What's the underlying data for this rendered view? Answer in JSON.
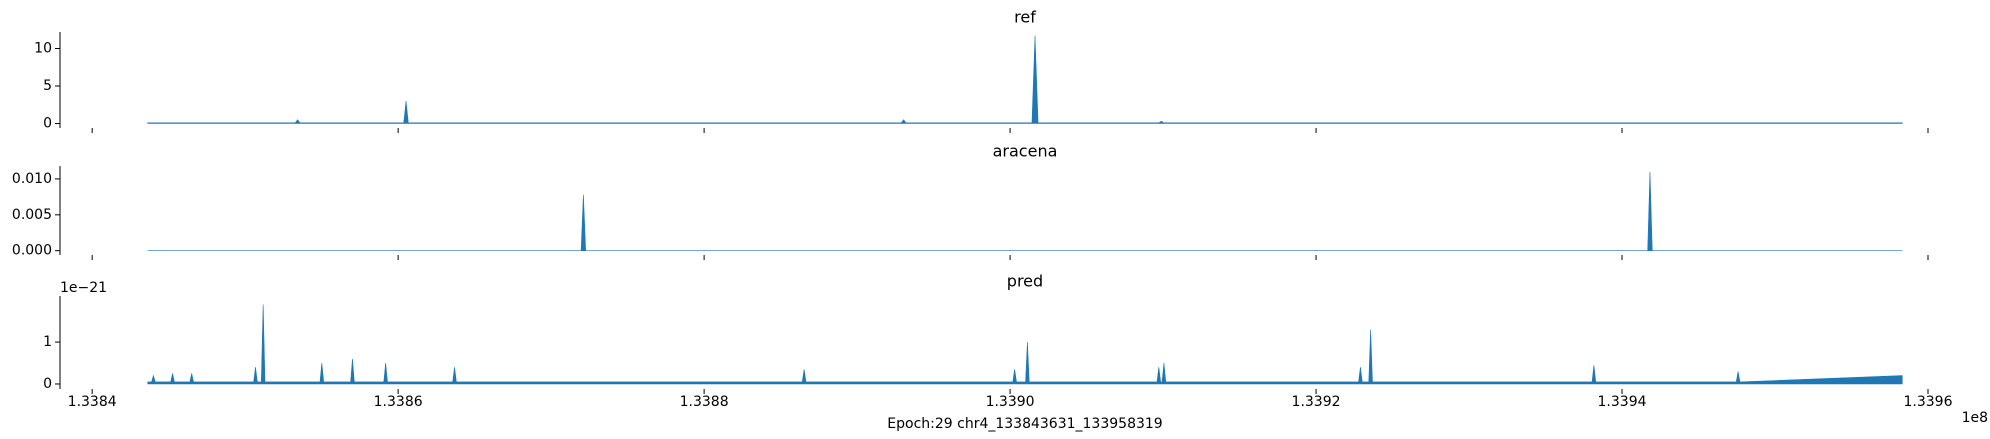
{
  "chart_data": [
    {
      "type": "area",
      "title": "ref",
      "color": "#1f77b4",
      "x": [
        133843631,
        133853277,
        133853427,
        133853577,
        133860366,
        133860516,
        133860666,
        133892890,
        133893040,
        133893190,
        133901430,
        133901630,
        133901830,
        133909736,
        133909886,
        133910036,
        133958319
      ],
      "values": [
        0.1,
        0.1,
        0.5,
        0.1,
        0.1,
        3.0,
        0.1,
        0.1,
        0.5,
        0.1,
        0.1,
        11.7,
        0.1,
        0.1,
        0.3,
        0.1,
        0.1
      ],
      "xlim": [
        133837897,
        133964053
      ],
      "ylim": [
        -0.6,
        12.2
      ],
      "yticks": [
        0,
        5,
        10
      ]
    },
    {
      "type": "area",
      "title": "aracena",
      "color": "#1f77b4",
      "x": [
        133843631,
        133871959,
        133872109,
        133872259,
        133941677,
        133941827,
        133941977,
        133958319
      ],
      "values": [
        0,
        0,
        0.0078,
        0,
        0,
        0.011,
        0,
        0
      ],
      "xlim": [
        133837897,
        133964053
      ],
      "ylim": [
        -0.0006,
        0.0118
      ],
      "yticks": [
        {
          "value": 0,
          "label": "0.000"
        },
        {
          "value": 0.005,
          "label": "0.005"
        },
        {
          "value": 0.01,
          "label": "0.010"
        }
      ]
    },
    {
      "type": "area",
      "title": "pred",
      "color": "#1f77b4",
      "x": [
        133843631,
        133843883,
        133844003,
        133844123,
        133845134,
        133845254,
        133845374,
        133846385,
        133846505,
        133846625,
        133850555,
        133850675,
        133850795,
        133851056,
        133851176,
        133851296,
        133854892,
        133855012,
        133855132,
        133856894,
        133857014,
        133857134,
        133859062,
        133859182,
        133859302,
        133863566,
        133863686,
        133863806,
        133886417,
        133886537,
        133886657,
        133900178,
        133900298,
        133900418,
        133901012,
        133901132,
        133901252,
        133909602,
        133909722,
        133909842,
        133909936,
        133910056,
        133910176,
        133922780,
        133922900,
        133923020,
        133923447,
        133923567,
        133923687,
        133938042,
        133938162,
        133938282,
        133947466,
        133947586,
        133947706,
        133958319
      ],
      "values": [
        5e-23,
        5e-23,
        2e-22,
        5e-23,
        5e-23,
        2.5e-22,
        5e-23,
        5e-23,
        2.5e-22,
        5e-23,
        5e-23,
        4e-22,
        5e-23,
        5e-23,
        1.9e-21,
        5e-23,
        5e-23,
        5e-22,
        5e-23,
        5e-23,
        6e-22,
        5e-23,
        5e-23,
        5e-22,
        5e-23,
        5e-23,
        4e-22,
        5e-23,
        5e-23,
        3.5e-22,
        5e-23,
        5e-23,
        3.5e-22,
        5e-23,
        5e-23,
        1e-21,
        5e-23,
        5e-23,
        4e-22,
        5e-23,
        5e-23,
        5e-22,
        5e-23,
        5e-23,
        4e-22,
        5e-23,
        5e-23,
        1.3e-21,
        5e-23,
        5e-23,
        4.5e-22,
        5e-23,
        5e-23,
        3e-22,
        5e-23,
        2e-22
      ],
      "xlim": [
        133837897,
        133964053
      ],
      "ylim": [
        -1.2e-22,
        2.1e-21
      ],
      "yticks": [
        0,
        {
          "value": 1e-21,
          "label": "1"
        }
      ],
      "y_offset_label": "1e−21",
      "xticks": [
        {
          "value": 133840000,
          "label": "1.3384"
        },
        {
          "value": 133860000,
          "label": "1.3386"
        },
        {
          "value": 133880000,
          "label": "1.3388"
        },
        {
          "value": 133900000,
          "label": "1.3390"
        },
        {
          "value": 133920000,
          "label": "1.3392"
        },
        {
          "value": 133940000,
          "label": "1.3394"
        },
        {
          "value": 133960000,
          "label": "1.3396"
        }
      ],
      "x_offset_label": "1e8",
      "xlabel": "Epoch:29 chr4_133843631_133958319"
    }
  ]
}
